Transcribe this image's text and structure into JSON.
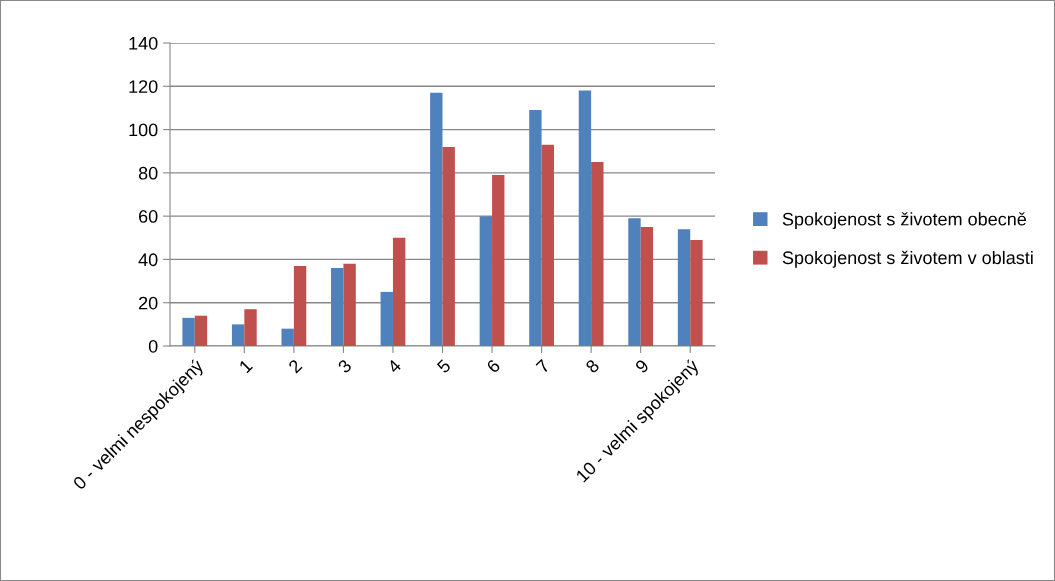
{
  "chart_data": {
    "type": "bar",
    "categories": [
      "0 - velmi nespokojený",
      "1",
      "2",
      "3",
      "4",
      "5",
      "6",
      "7",
      "8",
      "9",
      "10 - velmi spokojený"
    ],
    "series": [
      {
        "name": "Spokojenost s životem obecně",
        "color": "#4f81bd",
        "values": [
          13,
          10,
          8,
          36,
          25,
          117,
          60,
          109,
          118,
          59,
          54
        ]
      },
      {
        "name": "Spokojenost s životem v oblasti",
        "color": "#c0504d",
        "values": [
          14,
          17,
          37,
          38,
          50,
          92,
          79,
          93,
          85,
          55,
          49
        ]
      }
    ],
    "ylim": [
      0,
      140
    ],
    "yticks": [
      0,
      20,
      40,
      60,
      80,
      100,
      120,
      140
    ],
    "grid": "y",
    "legend": "right"
  }
}
